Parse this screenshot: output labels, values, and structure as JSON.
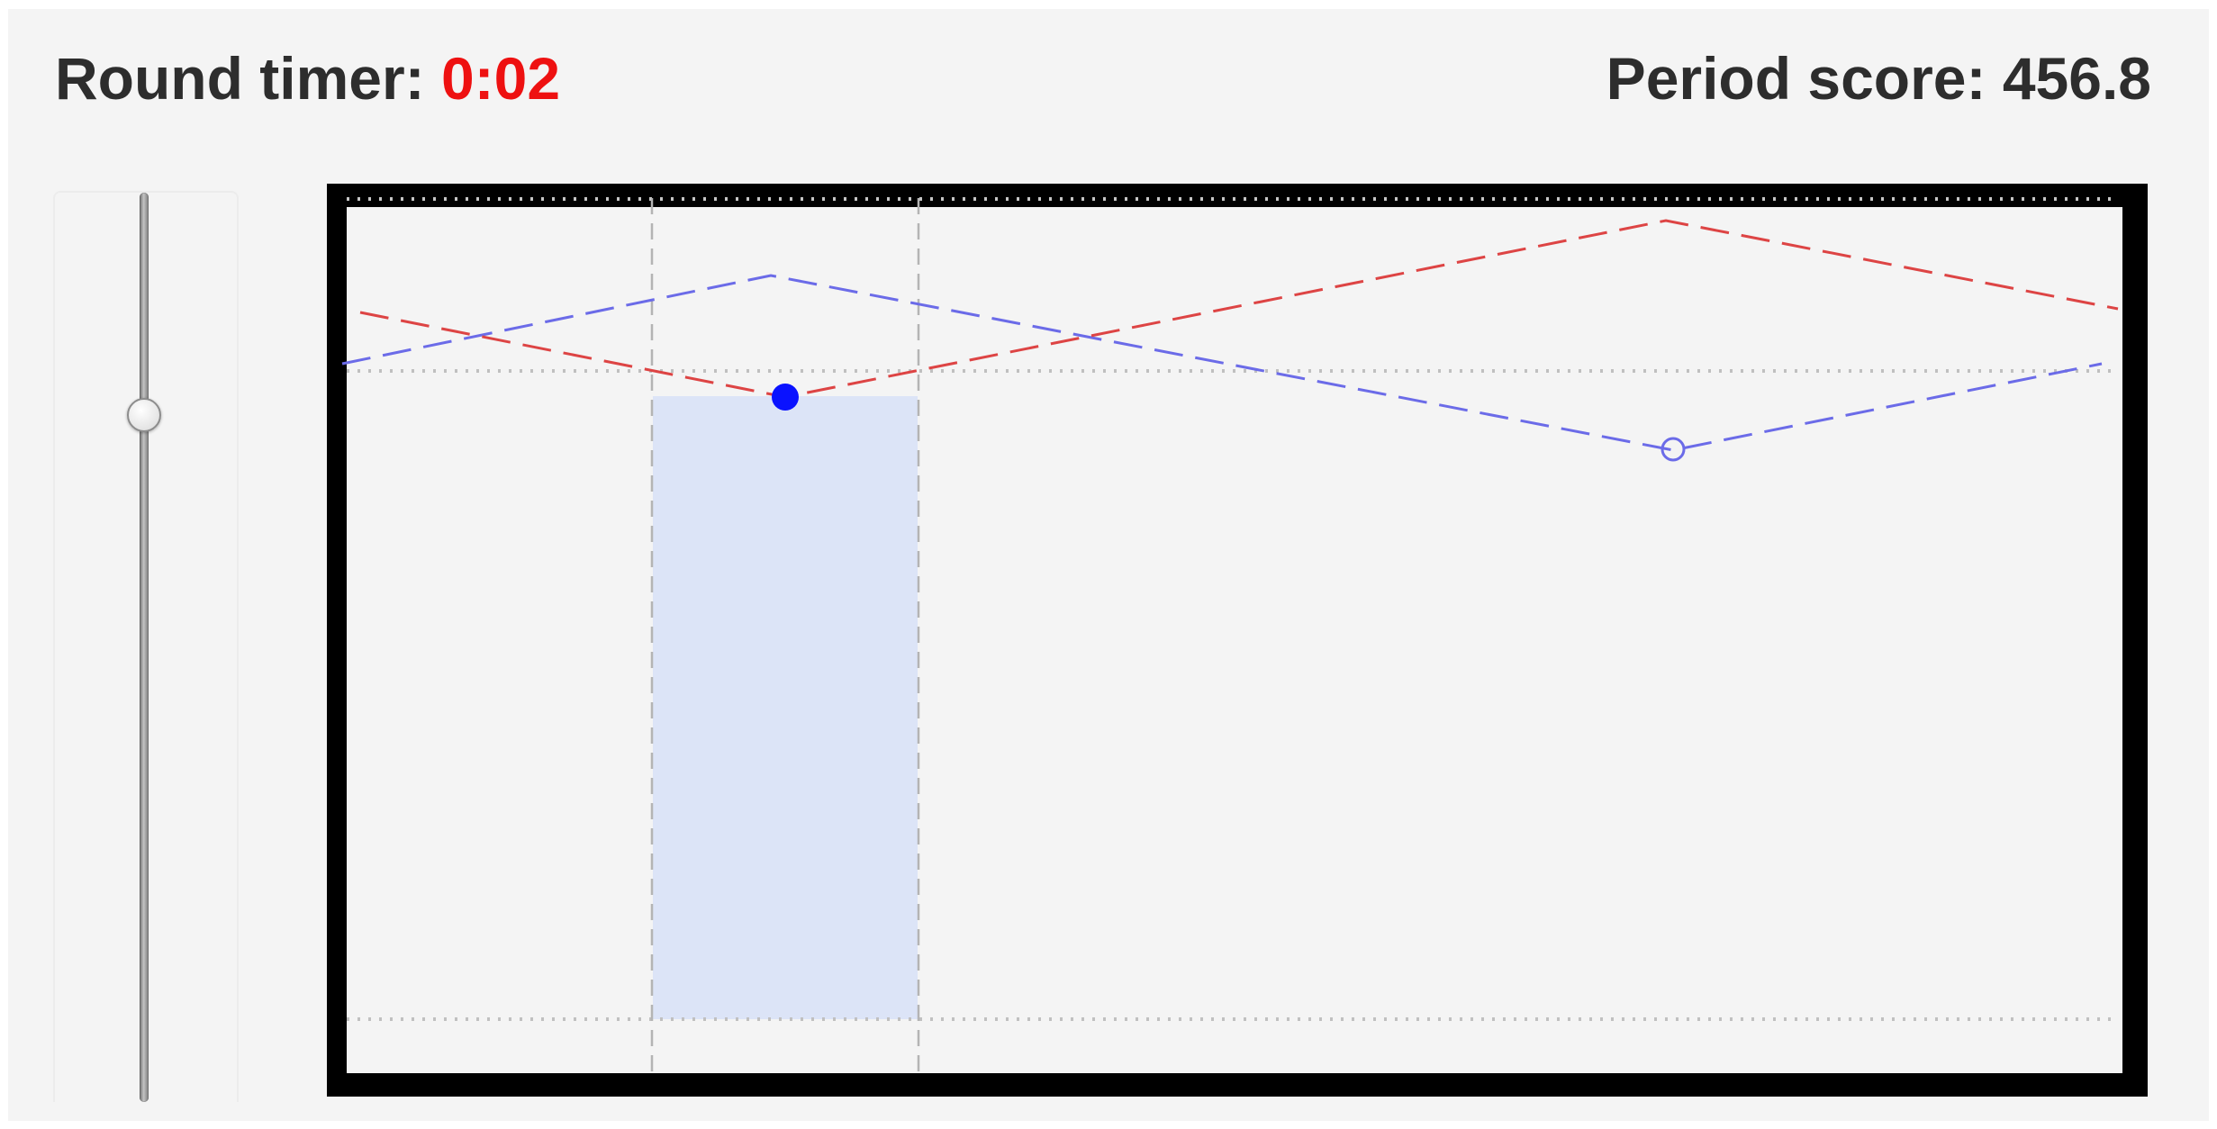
{
  "header": {
    "timer_label": "Round timer: ",
    "timer_value": "0:02",
    "score_label": "Period score: ",
    "score_value": "456.8"
  },
  "colors": {
    "timer_value": "#ee1111",
    "red_series": "#dd4444",
    "blue_series": "#6b6be8",
    "player_dot": "#0a12ff",
    "highlight": "#dce4f7"
  },
  "slider": {
    "position_fraction": 0.25
  }
}
